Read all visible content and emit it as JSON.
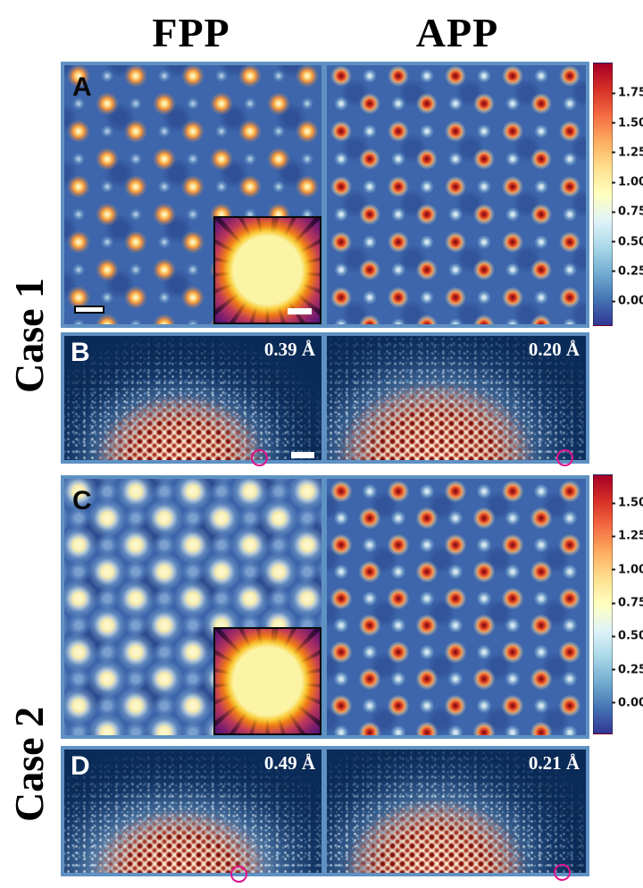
{
  "figure": {
    "column_headers": [
      {
        "label": "FPP"
      },
      {
        "label": "APP"
      }
    ],
    "row_labels": [
      {
        "label": "Case 1"
      },
      {
        "label": "Case 2"
      }
    ],
    "panels": [
      {
        "letter": "A"
      },
      {
        "letter": "B",
        "left_resolution": "0.39 Å",
        "right_resolution": "0.20 Å"
      },
      {
        "letter": "C"
      },
      {
        "letter": "D",
        "left_resolution": "0.49 Å",
        "right_resolution": "0.21 Å"
      }
    ],
    "colorbars": [
      {
        "ticks": [
          {
            "label": "1.75",
            "pos": 11.4
          },
          {
            "label": "1.50",
            "pos": 22.7
          },
          {
            "label": "1.25",
            "pos": 34.1
          },
          {
            "label": "1.00",
            "pos": 45.5
          },
          {
            "label": "0.75",
            "pos": 56.8
          },
          {
            "label": "0.50",
            "pos": 68.2
          },
          {
            "label": "0.25",
            "pos": 79.5
          },
          {
            "label": "0.00",
            "pos": 90.9
          }
        ]
      },
      {
        "ticks": [
          {
            "label": "1.50",
            "pos": 10.8
          },
          {
            "label": "1.25",
            "pos": 23.7
          },
          {
            "label": "1.00",
            "pos": 36.6
          },
          {
            "label": "0.75",
            "pos": 49.5
          },
          {
            "label": "0.50",
            "pos": 62.4
          },
          {
            "label": "0.25",
            "pos": 75.3
          },
          {
            "label": "0.00",
            "pos": 88.1
          }
        ]
      }
    ],
    "colors": {
      "panel_border": "#5f91c3",
      "lattice_background": "#3d66ac",
      "diffraction_background": "#0a2a57",
      "marker": "#e0138c",
      "colormap_top": "#a50026",
      "colormap_bottom": "#313695"
    }
  }
}
